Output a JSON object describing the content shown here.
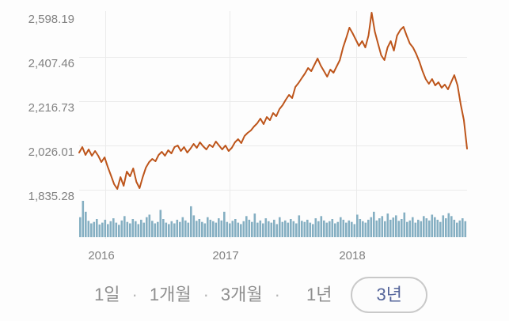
{
  "chart_data": {
    "type": "line",
    "y_ticks": [
      "2,598.19",
      "2,407.46",
      "2,216.73",
      "2,026.01",
      "1,835.28"
    ],
    "y_tick_values": [
      2598.19,
      2407.46,
      2216.73,
      2026.01,
      1835.28
    ],
    "x_ticks": [
      "2016",
      "2017",
      "2018"
    ],
    "ylim": [
      1835.28,
      2598.19
    ],
    "grid": true,
    "legend_position": "none",
    "line_color": "#bd551b",
    "volume_color": "#85afc2",
    "grid_color": "#ebebeb",
    "tick_label_color": "#828282",
    "series": [
      {
        "name": "price",
        "values": [
          1995.4,
          2019.2,
          1985.1,
          2009.0,
          1981.7,
          2002.2,
          1981.7,
          1954.5,
          1974.9,
          1934.0,
          1896.6,
          1859.1,
          1838.7,
          1889.8,
          1852.3,
          1913.6,
          1893.2,
          1927.2,
          1869.3,
          1842.1,
          1889.8,
          1930.6,
          1954.5,
          1968.1,
          1957.9,
          1985.1,
          1998.8,
          1981.7,
          2005.6,
          1992.0,
          2019.2,
          2026.0,
          2002.2,
          2019.2,
          1995.4,
          2012.4,
          2032.8,
          2015.8,
          2039.6,
          2022.6,
          2009.0,
          2029.4,
          2019.2,
          2043.0,
          2026.0,
          2009.0,
          2026.0,
          2002.2,
          2015.8,
          2039.6,
          2053.3,
          2036.2,
          2066.9,
          2080.5,
          2090.7,
          2107.8,
          2121.4,
          2141.8,
          2118.0,
          2148.6,
          2135.0,
          2165.7,
          2152.0,
          2182.7,
          2199.7,
          2223.6,
          2244.0,
          2230.4,
          2278.0,
          2295.1,
          2315.5,
          2335.9,
          2359.8,
          2346.1,
          2373.4,
          2400.7,
          2370.0,
          2346.1,
          2322.3,
          2352.9,
          2339.3,
          2366.6,
          2393.9,
          2448.4,
          2489.2,
          2533.5,
          2509.7,
          2482.4,
          2455.2,
          2475.6,
          2448.4,
          2499.5,
          2598.2,
          2516.5,
          2465.4,
          2414.3,
          2393.9,
          2448.4,
          2475.6,
          2434.7,
          2499.5,
          2523.3,
          2536.9,
          2499.5,
          2465.4,
          2448.4,
          2421.1,
          2387.1,
          2346.1,
          2312.1,
          2291.7,
          2312.1,
          2284.9,
          2298.5,
          2274.7,
          2288.3,
          2267.9,
          2298.5,
          2329.1,
          2284.9,
          2203.1,
          2135.0,
          2012.4
        ]
      },
      {
        "name": "volume_relative",
        "values": [
          55,
          100,
          70,
          45,
          38,
          42,
          50,
          35,
          40,
          48,
          36,
          44,
          52,
          40,
          34,
          46,
          58,
          42,
          38,
          50,
          44,
          36,
          48,
          40,
          55,
          62,
          45,
          38,
          42,
          75,
          50,
          40,
          36,
          44,
          38,
          48,
          42,
          55,
          46,
          40,
          85,
          60,
          45,
          50,
          42,
          38,
          55,
          48,
          44,
          40,
          52,
          46,
          70,
          42,
          38,
          45,
          50,
          40,
          36,
          44,
          58,
          48,
          42,
          65,
          40,
          46,
          38,
          52,
          44,
          40,
          48,
          36,
          55,
          42,
          46,
          40,
          50,
          44,
          38,
          60,
          45,
          42,
          48,
          40,
          36,
          52,
          44,
          58,
          46,
          40,
          44,
          50,
          38,
          42,
          55,
          48,
          40,
          46,
          42,
          36,
          62,
          50,
          44,
          40,
          48,
          55,
          70,
          46,
          52,
          58,
          44,
          65,
          48,
          54,
          60,
          45,
          50,
          68,
          42,
          46,
          55,
          40,
          48,
          44,
          58,
          52,
          46,
          62,
          55,
          48,
          42,
          60,
          52,
          66,
          58,
          48,
          40,
          46,
          52,
          44
        ]
      }
    ]
  },
  "period_selector": {
    "separator": "·",
    "inactive_color": "#8e8e8e",
    "active_color": "#55659a",
    "active_border_color": "#c9c9c9",
    "options": [
      {
        "label": "1일",
        "active": false
      },
      {
        "label": "1개월",
        "active": false
      },
      {
        "label": "3개월",
        "active": false
      },
      {
        "label": "1년",
        "active": false
      },
      {
        "label": "3년",
        "active": true
      }
    ]
  }
}
